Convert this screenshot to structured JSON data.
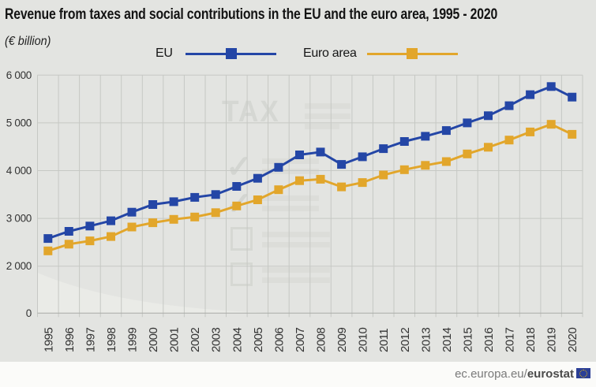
{
  "header": {
    "title": "Revenue from taxes and social contributions in the EU and the euro area, 1995 - 2020",
    "subtitle": "(€ billion)"
  },
  "legend": {
    "position": "top",
    "items": [
      {
        "label": "EU"
      },
      {
        "label": "Euro area"
      }
    ]
  },
  "watermark": {
    "text": "TAX"
  },
  "footer": {
    "url_prefix": "ec.europa.eu/",
    "brand": "eurostat",
    "flag_icon": "eu-flag-icon"
  },
  "colors": {
    "background": "#e3e4e1",
    "footer_background": "#fbfbf9",
    "grid": "#c6c8c4",
    "axis": "#a9aba7",
    "tick_label": "#333333",
    "title_text": "#131313",
    "watermark": "#d2d4d0",
    "eu_blue": "#2446a6",
    "euro_area_yellow": "#e2a62b",
    "footer_text": "#7a7a7a",
    "footer_brand": "#4b4b4b",
    "flag_blue": "#2b3f96",
    "flag_stars": "#f4c400"
  },
  "chart_data": {
    "type": "line",
    "title": "Revenue from taxes and social contributions in the EU and the euro area, 1995 - 2020",
    "subtitle": "(€ billion)",
    "xlabel": "",
    "ylabel": "€ billion",
    "x": [
      "1995",
      "1996",
      "1997",
      "1998",
      "1999",
      "2000",
      "2001",
      "2002",
      "2003",
      "2004",
      "2005",
      "2006",
      "2007",
      "2008",
      "2009",
      "2010",
      "2011",
      "2012",
      "2013",
      "2014",
      "2015",
      "2016",
      "2017",
      "2018",
      "2019",
      "2020"
    ],
    "series": [
      {
        "name": "EU",
        "color": "#2446a6",
        "marker": "square",
        "values": [
          2580,
          2730,
          2840,
          2950,
          3130,
          3290,
          3350,
          3440,
          3500,
          3670,
          3840,
          4070,
          4330,
          4390,
          4130,
          4290,
          4460,
          4610,
          4720,
          4840,
          5000,
          5150,
          5360,
          5590,
          5760,
          5540
        ]
      },
      {
        "name": "Euro area",
        "color": "#e2a62b",
        "marker": "square",
        "values": [
          2320,
          2460,
          2530,
          2620,
          2820,
          2910,
          2980,
          3030,
          3120,
          3260,
          3390,
          3600,
          3790,
          3820,
          3660,
          3750,
          3910,
          4020,
          4110,
          4190,
          4350,
          4490,
          4640,
          4810,
          4970,
          4760
        ]
      }
    ],
    "ytick_values": [
      6000,
      5000,
      4000,
      3000,
      2000,
      0
    ],
    "ytick_labels": [
      "6 000",
      "5 000",
      "4 000",
      "3 000",
      "2 000",
      "0"
    ],
    "ylim": [
      0,
      6000
    ],
    "y_axis_break_below": 2000,
    "grid": true,
    "legend_position": "top",
    "x_tick_rotation": -90
  }
}
